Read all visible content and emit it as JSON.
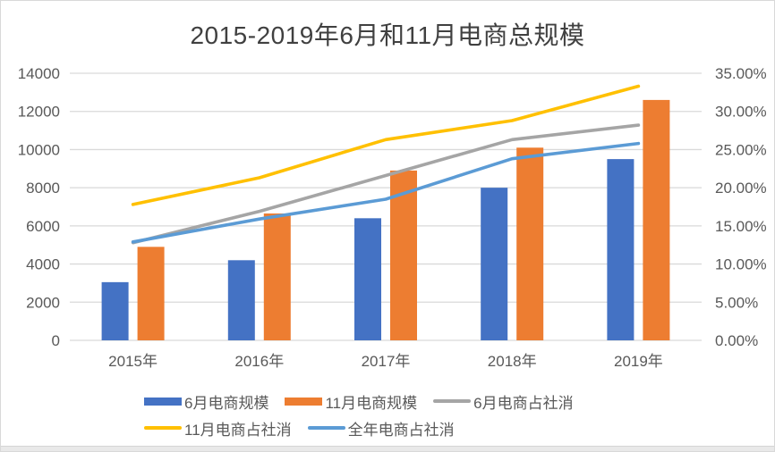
{
  "window": {
    "background": "#ffffff",
    "frame_border_color": "#d9d9d9",
    "bottom_strip_color": "#e9e9e9"
  },
  "chart_data": {
    "type": "bar+line-combo",
    "title": "2015-2019年6月和11月电商总规模",
    "categories": [
      "2015年",
      "2016年",
      "2017年",
      "2018年",
      "2019年"
    ],
    "left_axis": {
      "min": 0,
      "max": 14000,
      "step": 2000,
      "tick_labels": [
        "0",
        "2000",
        "4000",
        "6000",
        "8000",
        "10000",
        "12000",
        "14000"
      ]
    },
    "right_axis": {
      "min_percent": 0,
      "max_percent": 35,
      "step_percent": 5,
      "tick_labels": [
        "0.00%",
        "5.00%",
        "10.00%",
        "15.00%",
        "20.00%",
        "25.00%",
        "30.00%",
        "35.00%"
      ]
    },
    "grid": true,
    "bar_series": [
      {
        "name": "6月电商规模",
        "color": "#4472C4",
        "axis": "left",
        "values": [
          3050,
          4200,
          6400,
          8000,
          9500
        ]
      },
      {
        "name": "11月电商规模",
        "color": "#ED7D31",
        "axis": "left",
        "values": [
          4900,
          6650,
          8900,
          10100,
          12600
        ]
      }
    ],
    "line_series": [
      {
        "name": "6月电商占社消",
        "color": "#A5A5A5",
        "axis": "right",
        "values_percent": [
          12.8,
          16.9,
          21.6,
          26.3,
          28.2
        ]
      },
      {
        "name": "11月电商占社消",
        "color": "#FFC000",
        "axis": "right",
        "values_percent": [
          17.8,
          21.3,
          26.3,
          28.8,
          33.3
        ]
      },
      {
        "name": "全年电商占社消",
        "color": "#5B9BD5",
        "axis": "right",
        "values_percent": [
          12.9,
          15.9,
          18.5,
          23.8,
          25.8
        ]
      }
    ],
    "legend": {
      "position": "bottom",
      "rows": [
        [
          "6月电商规模",
          "11月电商规模",
          "6月电商占社消"
        ],
        [
          "11月电商占社消",
          "全年电商占社消"
        ]
      ]
    },
    "text_colors": {
      "title": "#404040",
      "axis_labels": "#595959",
      "gridline": "#d9d9d9"
    }
  }
}
